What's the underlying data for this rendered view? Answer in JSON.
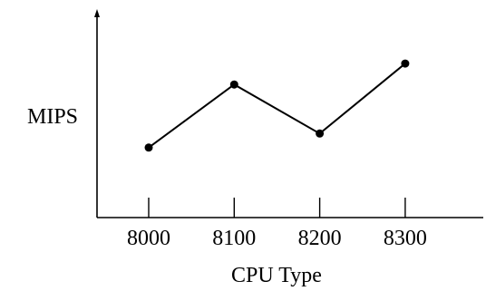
{
  "chart_data": {
    "type": "line",
    "categories": [
      "8000",
      "8100",
      "8200",
      "8300"
    ],
    "series": [
      {
        "values": [
          1.0,
          1.9,
          1.2,
          2.2
        ]
      }
    ],
    "title": "",
    "xlabel": "CPU Type",
    "ylabel": "MIPS",
    "ylim": [
      0,
      2.9
    ],
    "y_ticks_shown": false,
    "grid": false,
    "legend": "none"
  },
  "colors": {
    "line": "#000000",
    "background": "#ffffff"
  }
}
